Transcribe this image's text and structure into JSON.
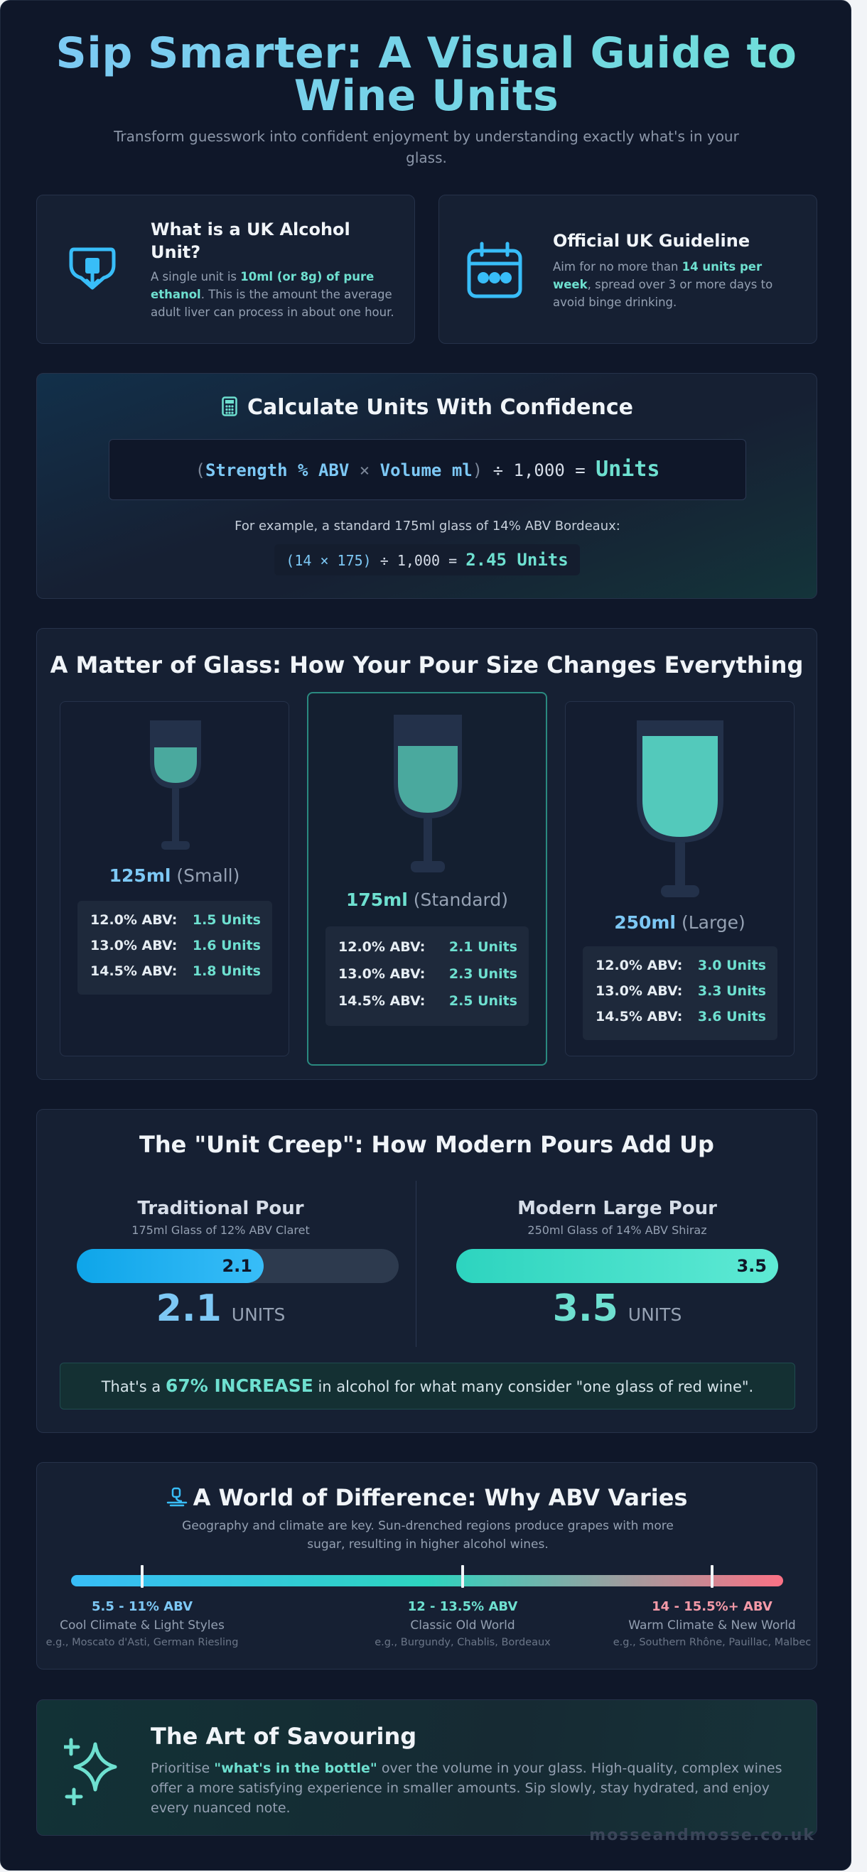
{
  "hero": {
    "title_line1": "Sip Smarter: A Visual Guide to",
    "title_line2": "Wine Units",
    "subtitle": "Transform guesswork into confident enjoyment by understanding exactly what's in your glass."
  },
  "unit_card": {
    "title": "What is a UK Alcohol Unit?",
    "text_before": "A single unit is ",
    "text_highlight": "10ml (or 8g) of pure ethanol",
    "text_after": ". This is the amount the average adult liver can process in about one hour.",
    "icon": "glass-drop-icon"
  },
  "guideline_card": {
    "title": "Official UK Guideline",
    "text_before": "Aim for no more than ",
    "text_highlight": "14 units per week",
    "text_after": ", spread over 3 or more days to avoid binge drinking.",
    "icon": "calendar-icon"
  },
  "calculator": {
    "title": "Calculate Units With Confidence",
    "icon": "calculator-icon",
    "formula": {
      "open": "(",
      "strength": "Strength % ABV",
      "times": "×",
      "volume": "Volume ml",
      "close": ")",
      "divide": "÷ 1,000 =",
      "result": "Units"
    },
    "example_text": "For example, a standard 175ml glass of 14% ABV Bordeaux:",
    "example": {
      "expr": "(14 × 175)",
      "divide": "÷ 1,000 =",
      "result": "2.45 Units"
    }
  },
  "glasses": {
    "title": "A Matter of Glass: How Your Pour Size Changes Everything",
    "items": [
      {
        "size": "125ml",
        "name": "(Small)",
        "fill": 0.45,
        "rows": [
          {
            "abv": "12.0% ABV:",
            "units": "1.5 Units"
          },
          {
            "abv": "13.0% ABV:",
            "units": "1.6 Units"
          },
          {
            "abv": "14.5% ABV:",
            "units": "1.8 Units"
          }
        ]
      },
      {
        "size": "175ml",
        "name": "(Standard)",
        "fill": 0.65,
        "rows": [
          {
            "abv": "12.0% ABV:",
            "units": "2.1 Units"
          },
          {
            "abv": "13.0% ABV:",
            "units": "2.3 Units"
          },
          {
            "abv": "14.5% ABV:",
            "units": "2.5 Units"
          }
        ]
      },
      {
        "size": "250ml",
        "name": "(Large)",
        "fill": 0.85,
        "rows": [
          {
            "abv": "12.0% ABV:",
            "units": "3.0 Units"
          },
          {
            "abv": "13.0% ABV:",
            "units": "3.3 Units"
          },
          {
            "abv": "14.5% ABV:",
            "units": "3.6 Units"
          }
        ]
      }
    ]
  },
  "creep": {
    "title": "The \"Unit Creep\": How Modern Pours Add Up",
    "traditional": {
      "title": "Traditional Pour",
      "subtitle": "175ml Glass of 12% ABV Claret",
      "value": "2.1",
      "fill_fraction": 0.58,
      "big": "2.1",
      "units_label": "UNITS"
    },
    "modern": {
      "title": "Modern Large Pour",
      "subtitle": "250ml Glass of 14% ABV Shiraz",
      "value": "3.5",
      "fill_fraction": 1.0,
      "big": "3.5",
      "units_label": "UNITS"
    },
    "increase_before": "That's a ",
    "increase_highlight": "67% INCREASE",
    "increase_after": " in alcohol for what many consider \"one glass of red wine\"."
  },
  "abv_world": {
    "title": "A World of Difference: Why ABV Varies",
    "icon": "microscope-icon",
    "subtitle": "Geography and climate are key. Sun-drenched regions produce grapes with more sugar, resulting in higher alcohol wines.",
    "zones": [
      {
        "range": "5.5 - 11% ABV",
        "label": "Cool Climate & Light Styles",
        "examples": "e.g., Moscato d'Asti, German Riesling",
        "color": "#7dc8f5",
        "tick": 0.1
      },
      {
        "range": "12 - 13.5% ABV",
        "label": "Classic Old World",
        "examples": "e.g., Burgundy, Chablis, Bordeaux",
        "color": "#6ee0d0",
        "tick": 0.55
      },
      {
        "range": "14 - 15.5%+ ABV",
        "label": "Warm Climate & New World",
        "examples": "e.g., Southern Rhône, Pauillac, Malbec",
        "color": "#f59aa8",
        "tick": 0.9
      }
    ]
  },
  "savour": {
    "title": "The Art of Savouring",
    "icon": "sparkle-icon",
    "text_before": "Prioritise ",
    "text_highlight": "\"what's in the bottle\"",
    "text_after": " over the volume in your glass. High-quality, complex wines offer a more satisfying experience in smaller amounts. Sip slowly, stay hydrated, and enjoy every nuanced note."
  },
  "footer": "mosseandmosse.co.uk"
}
